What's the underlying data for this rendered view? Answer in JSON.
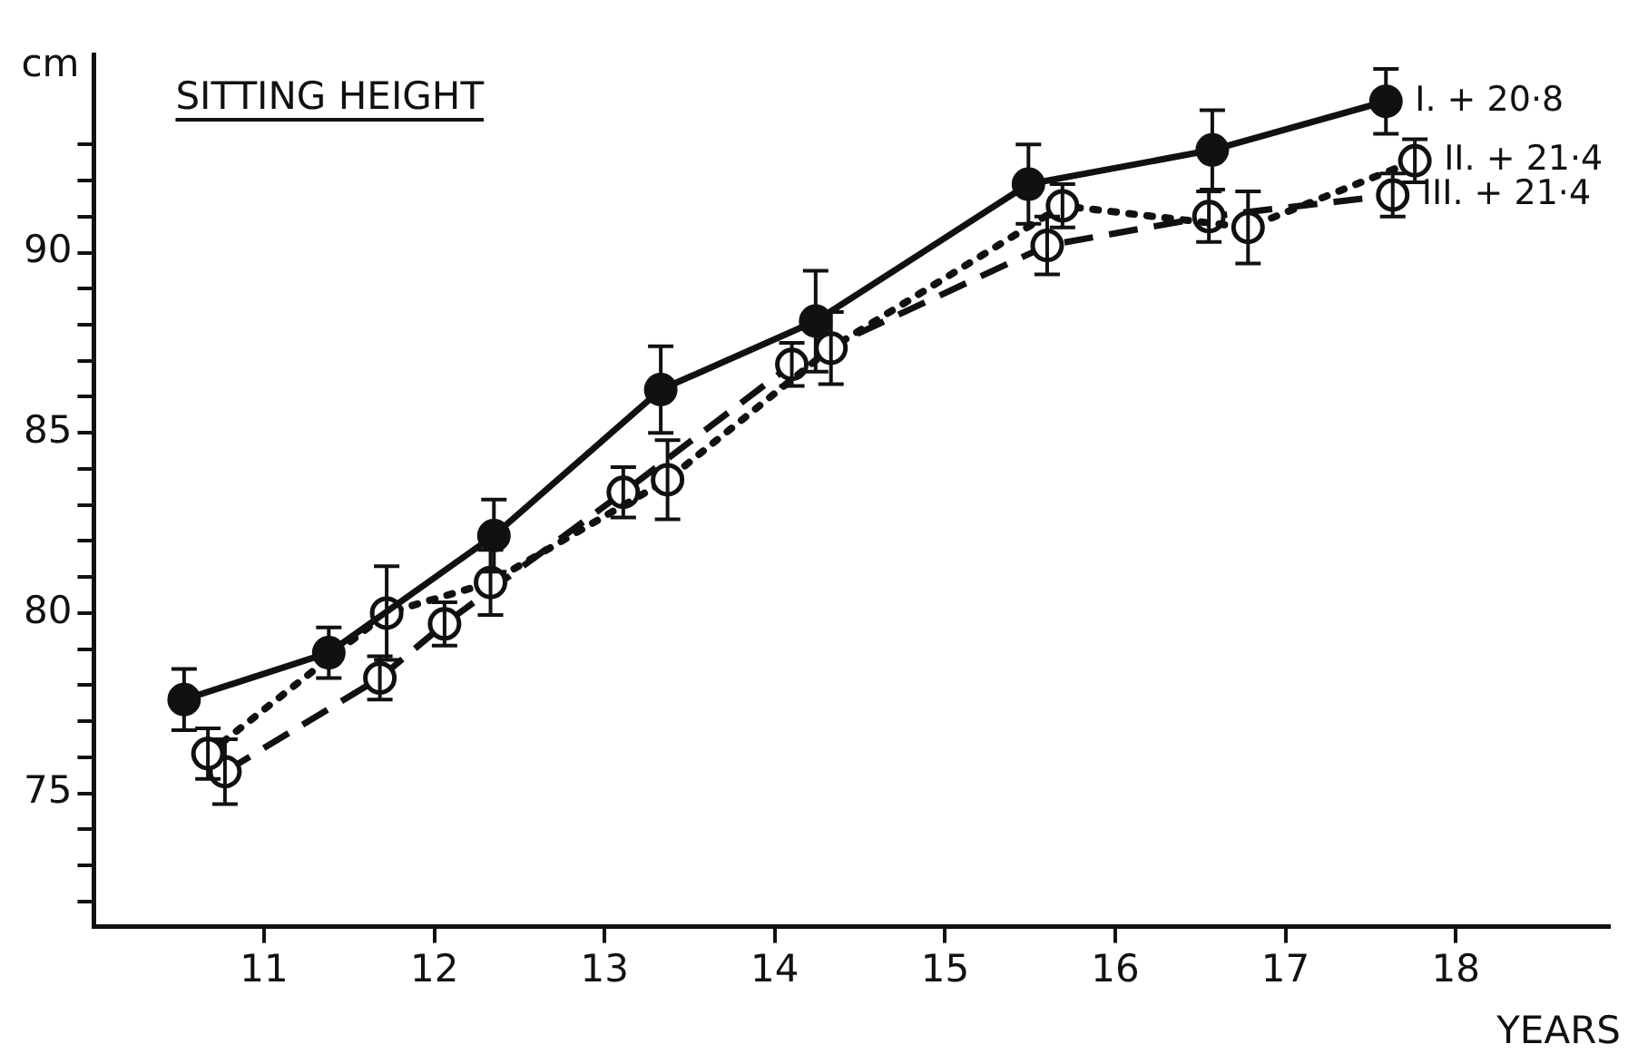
{
  "chart_data": {
    "type": "line",
    "title": "SITTING HEIGHT",
    "xlabel": "YEARS",
    "ylabel": "cm",
    "xlim": [
      10,
      18.9
    ],
    "xticks": [
      11,
      12,
      13,
      14,
      15,
      16,
      17,
      18
    ],
    "ylim": [
      71.3,
      95.5
    ],
    "yticks": [
      {
        "value": 72,
        "label": null
      },
      {
        "value": 73,
        "label": null
      },
      {
        "value": 74,
        "label": null
      },
      75,
      {
        "value": 76,
        "label": null
      },
      {
        "value": 77,
        "label": null
      },
      {
        "value": 78,
        "label": null
      },
      {
        "value": 79,
        "label": null
      },
      80,
      {
        "value": 81,
        "label": null
      },
      {
        "value": 82,
        "label": null
      },
      {
        "value": 83,
        "label": null
      },
      {
        "value": 84,
        "label": null
      },
      85,
      {
        "value": 86,
        "label": null
      },
      {
        "value": 87,
        "label": null
      },
      {
        "value": 88,
        "label": null
      },
      {
        "value": 89,
        "label": null
      },
      90,
      {
        "value": 91,
        "label": null
      },
      {
        "value": 92,
        "label": null
      },
      {
        "value": 93,
        "label": null
      }
    ],
    "grid": false,
    "legend": false,
    "marker": "circle",
    "series": [
      {
        "name": "I. + 20·8",
        "color": "#111111",
        "line_style": "solid",
        "x": [
          10.53,
          11.38,
          12.35,
          13.33,
          14.24,
          15.49,
          16.57,
          17.59
        ],
        "values": [
          77.6,
          78.9,
          82.15,
          86.2,
          88.1,
          91.9,
          92.85,
          94.2
        ],
        "errors": [
          0.85,
          0.7,
          1.0,
          1.2,
          1.4,
          1.1,
          1.1,
          0.9
        ]
      },
      {
        "name": "II. + 21·4",
        "color": "#111111",
        "line_style": "dotted",
        "x": [
          10.67,
          11.72,
          12.33,
          13.37,
          14.33,
          15.69,
          16.78,
          17.76
        ],
        "values": [
          76.1,
          80.0,
          80.85,
          83.7,
          87.35,
          91.3,
          90.7,
          92.55
        ],
        "errors": [
          0.7,
          1.3,
          0.9,
          1.1,
          1.0,
          0.6,
          1.0,
          0.6
        ]
      },
      {
        "name": "III. + 21·4",
        "color": "#111111",
        "line_style": "dashed",
        "x": [
          10.77,
          11.68,
          12.06,
          13.11,
          14.1,
          15.6,
          16.55,
          17.63
        ],
        "values": [
          75.6,
          78.2,
          79.7,
          83.35,
          86.9,
          90.2,
          91.0,
          91.6
        ],
        "errors": [
          0.9,
          0.6,
          0.6,
          0.7,
          0.6,
          0.8,
          0.7,
          0.6
        ]
      }
    ]
  }
}
